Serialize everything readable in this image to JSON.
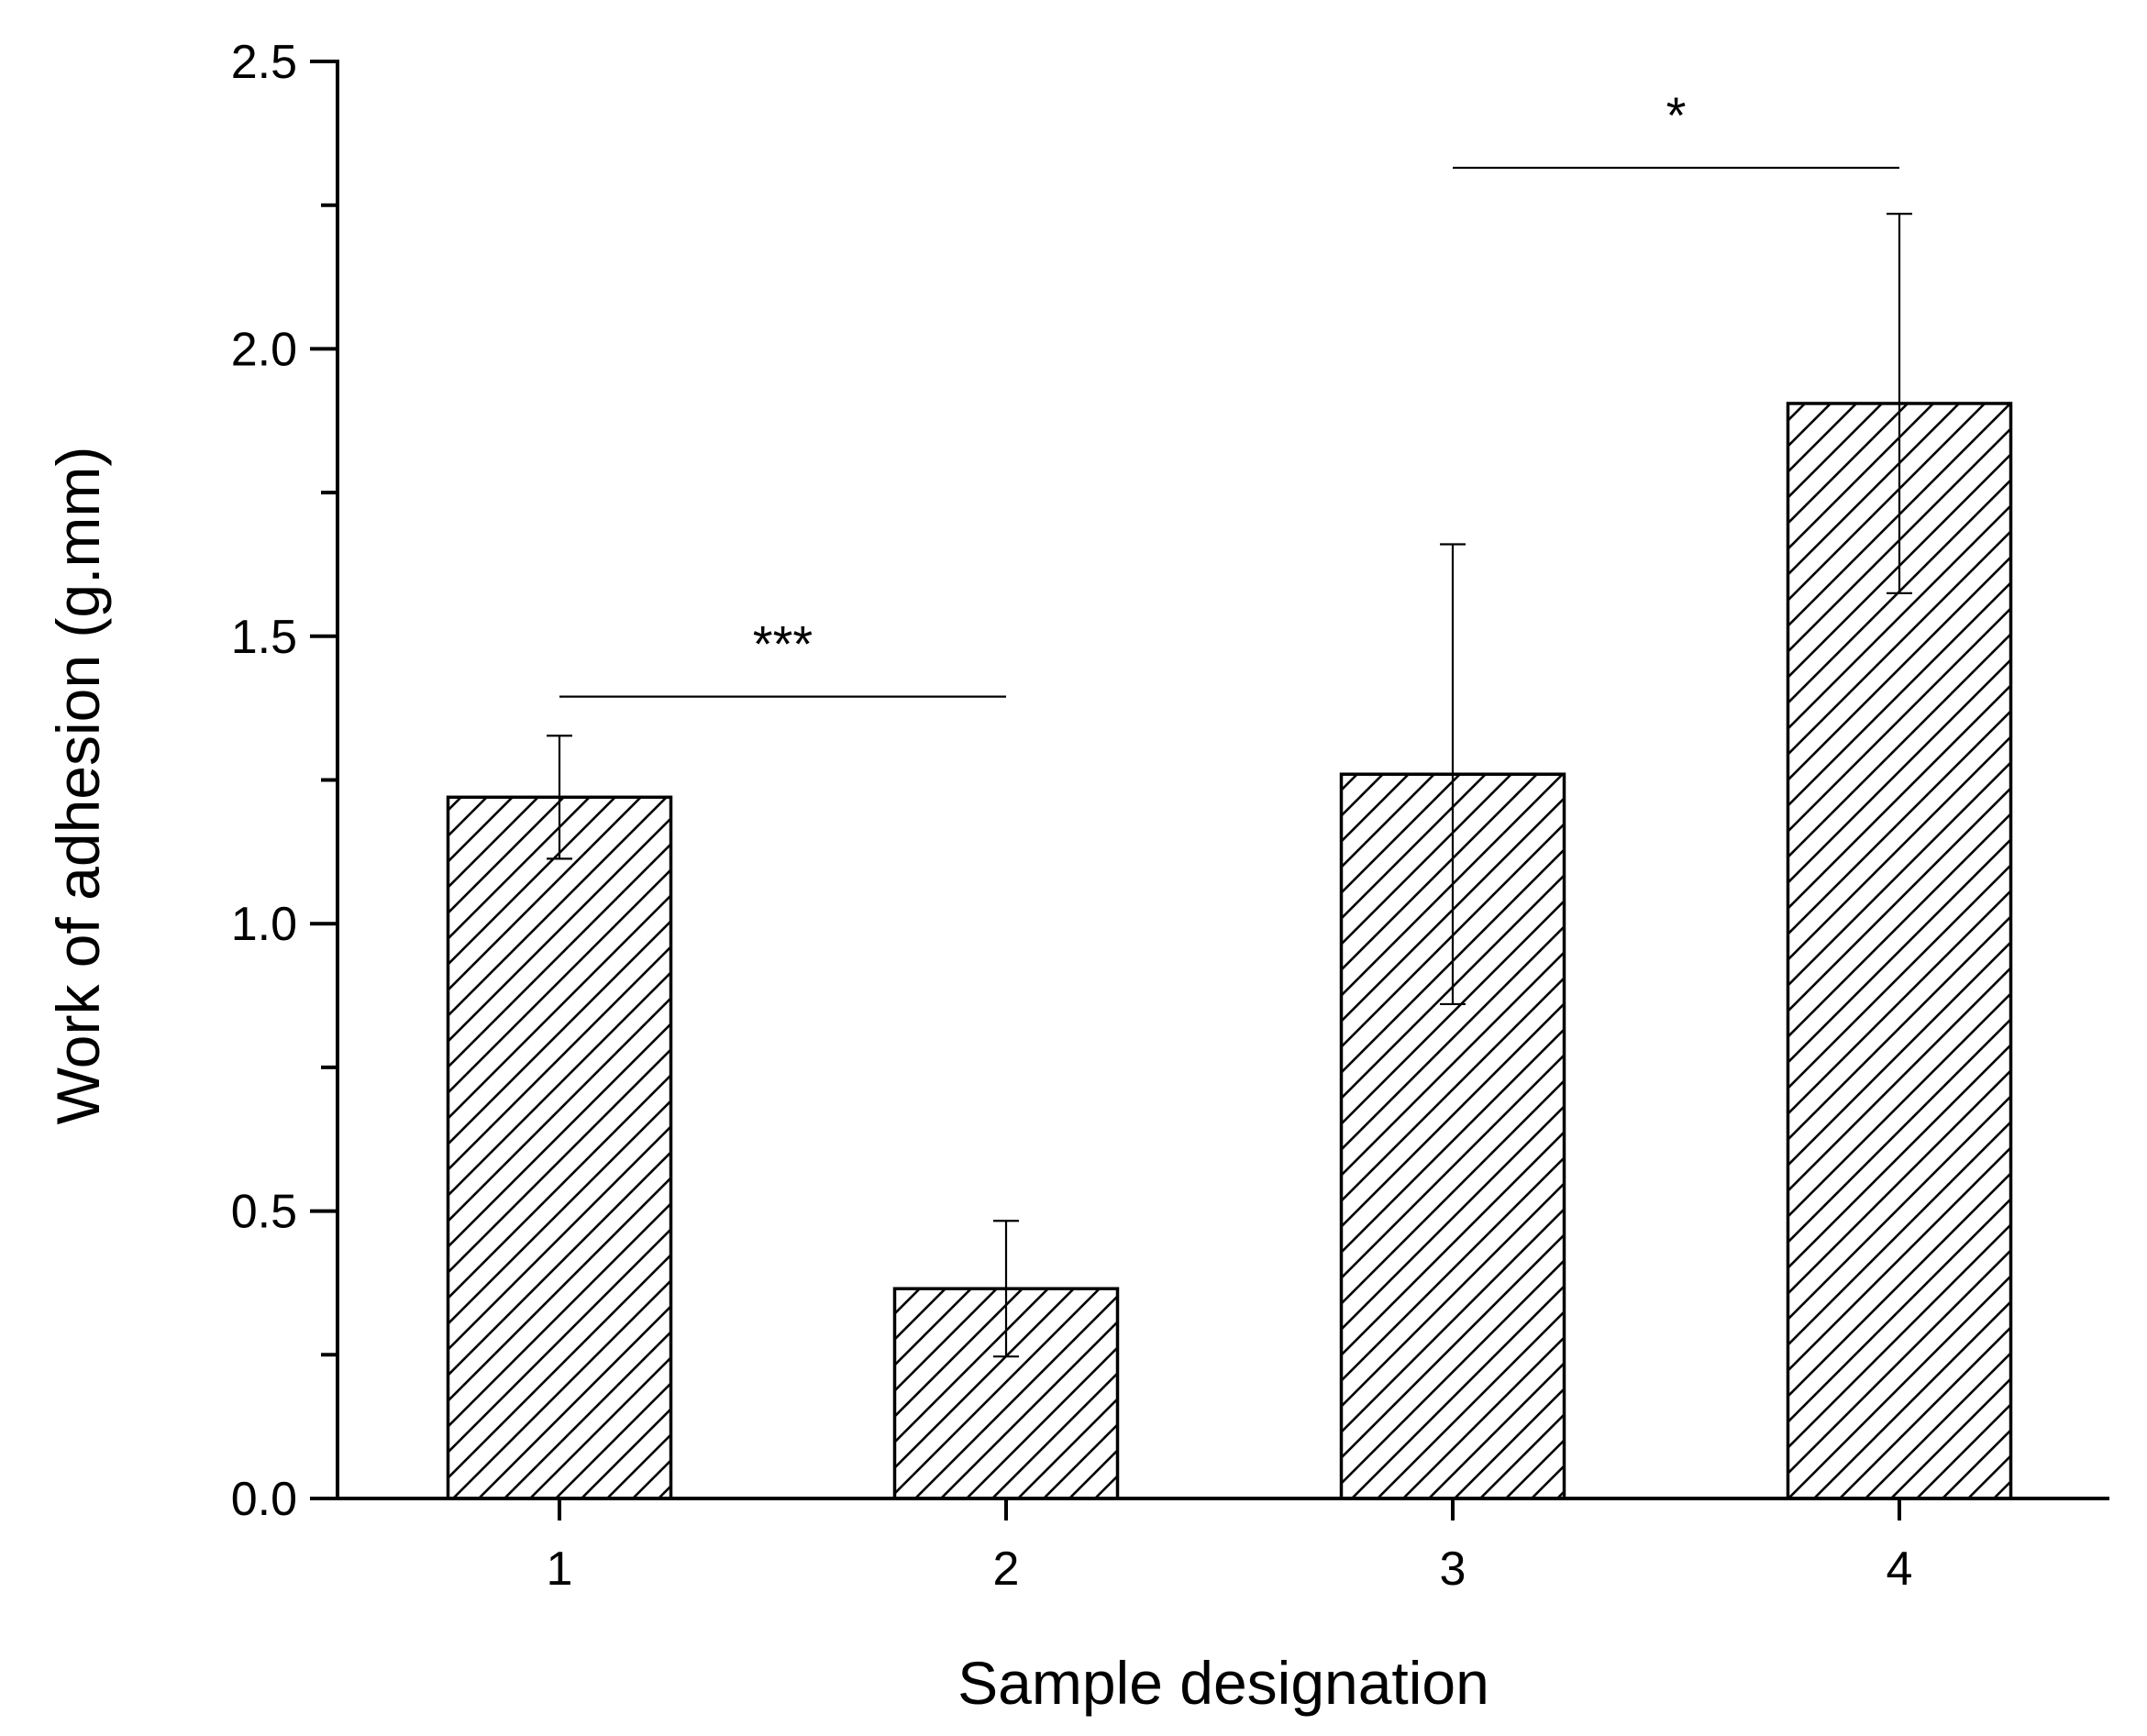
{
  "chart_data": {
    "type": "bar",
    "title": "",
    "xlabel": "Sample designation",
    "ylabel": "Work of adhesion (g.mm)",
    "categories": [
      "1",
      "2",
      "3",
      "4"
    ],
    "values": [
      1.22,
      0.365,
      1.26,
      1.905
    ],
    "errors": [
      0.107,
      0.118,
      0.4,
      0.33
    ],
    "ylim": [
      0,
      2.5
    ],
    "yticks": [
      "0.0",
      "0.5",
      "1.0",
      "1.5",
      "2.0",
      "2.5"
    ],
    "grid": false,
    "legend": "none",
    "bar_fill": "hatched",
    "significance": [
      {
        "from": "1",
        "to": "2",
        "y": 1.395,
        "label": "***"
      },
      {
        "from": "3",
        "to": "4",
        "y": 2.315,
        "label": "*"
      }
    ],
    "colors": {
      "bar_edge": "#000000",
      "hatch": "#000000",
      "background": "#ffffff"
    }
  }
}
